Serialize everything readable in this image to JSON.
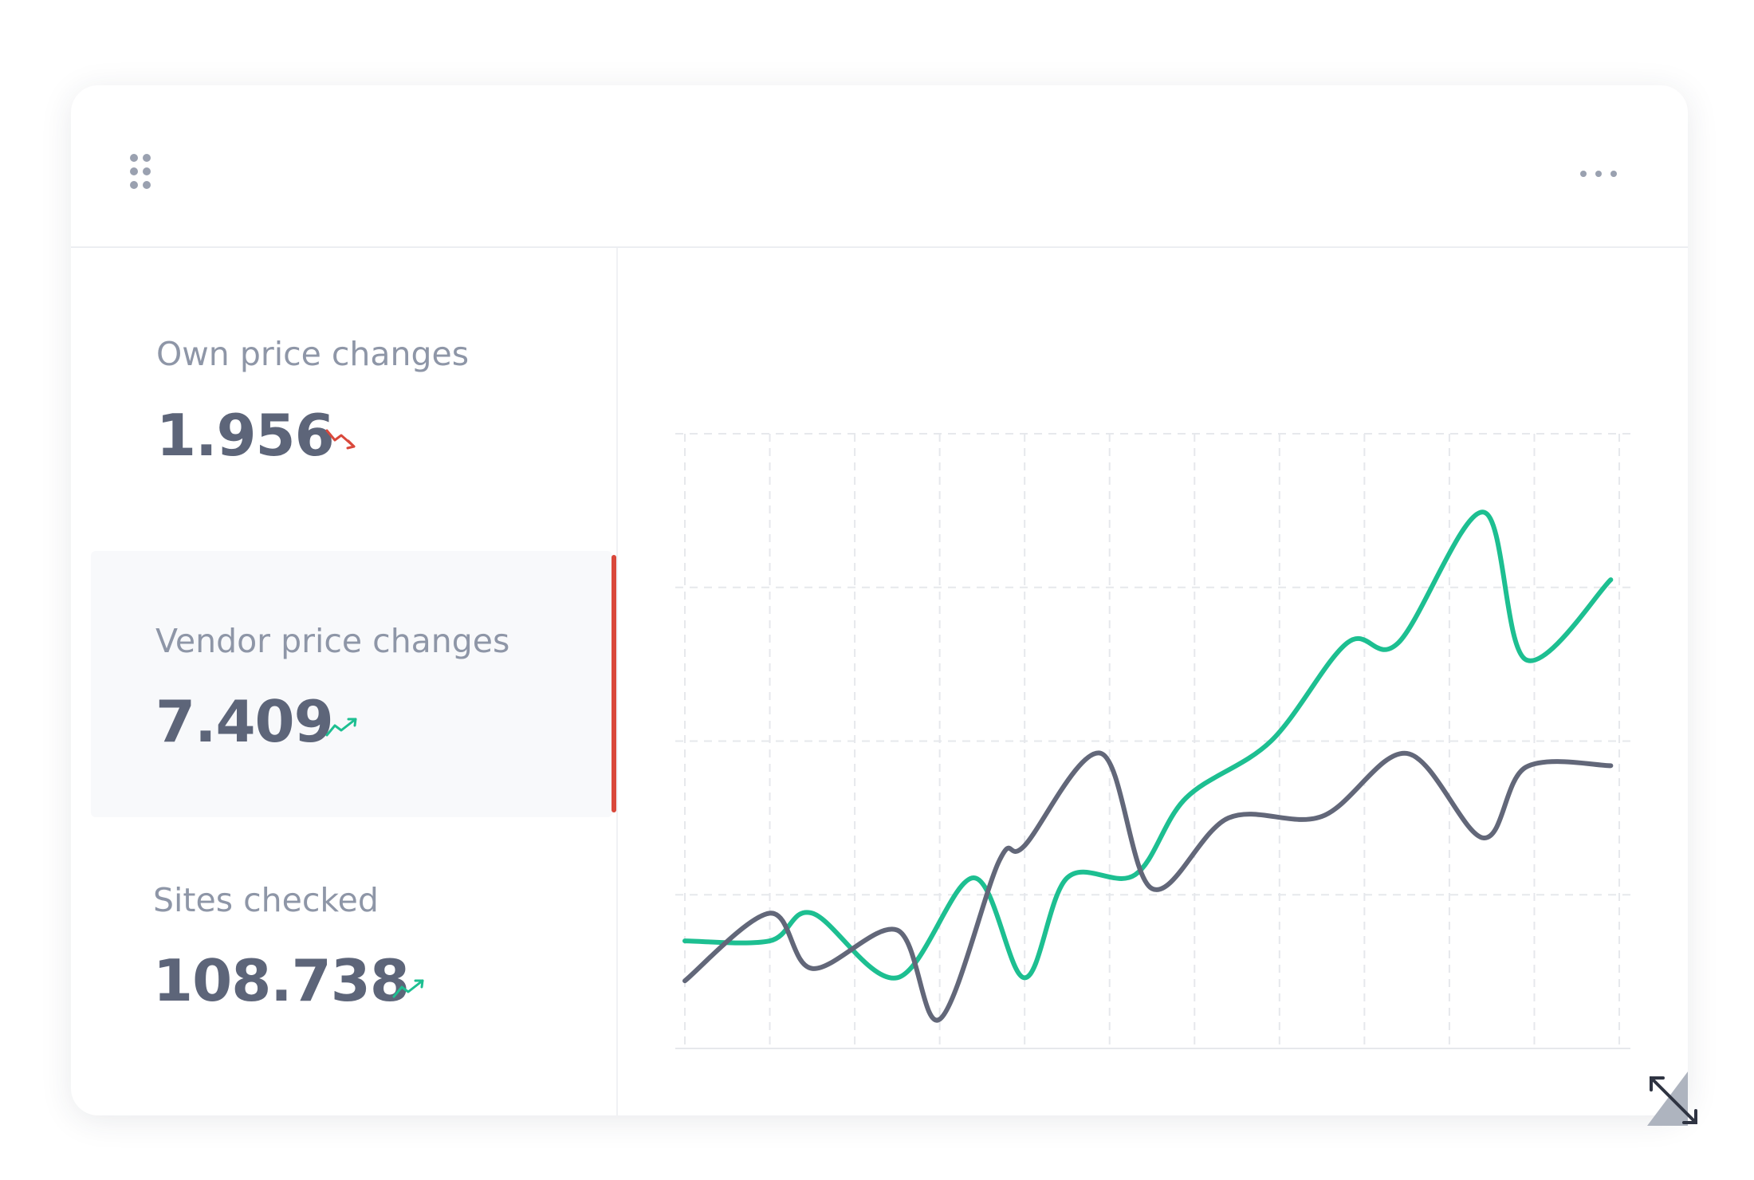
{
  "metrics": [
    {
      "label": "Own price changes",
      "value": "1.956"
    },
    {
      "label": "Vendor price changes",
      "value": "7.409"
    },
    {
      "label": "Sites checked",
      "value": "108.738"
    }
  ],
  "chart_data": {
    "type": "line",
    "xlim": [
      0,
      11
    ],
    "xticks": [
      0,
      1,
      2,
      3,
      4,
      5,
      6,
      7,
      8,
      9,
      10,
      11
    ],
    "ylim": [
      0,
      4
    ],
    "yticks": [
      0,
      1,
      2,
      3,
      4
    ],
    "grid": true,
    "series": [
      {
        "color": "#1dbf91",
        "x": [
          0,
          1,
          1.5,
          2.5,
          3.4,
          4,
          4.5,
          5.3,
          5.9,
          6.9,
          7.8,
          8.4,
          9.4,
          9.9,
          10.9
        ],
        "values": [
          0.7,
          0.7,
          0.88,
          0.46,
          1.11,
          0.46,
          1.11,
          1.13,
          1.63,
          2.0,
          2.64,
          2.64,
          3.49,
          2.53,
          3.05
        ]
      },
      {
        "color": "#626779",
        "x": [
          0,
          1,
          1.5,
          2.5,
          3,
          3.7,
          4,
          4.9,
          5.5,
          6.4,
          7.5,
          8.5,
          9.4,
          9.9,
          10.9
        ],
        "values": [
          0.44,
          0.88,
          0.52,
          0.77,
          0.19,
          1.22,
          1.32,
          1.92,
          1.04,
          1.5,
          1.51,
          1.92,
          1.37,
          1.83,
          1.84
        ]
      }
    ]
  }
}
